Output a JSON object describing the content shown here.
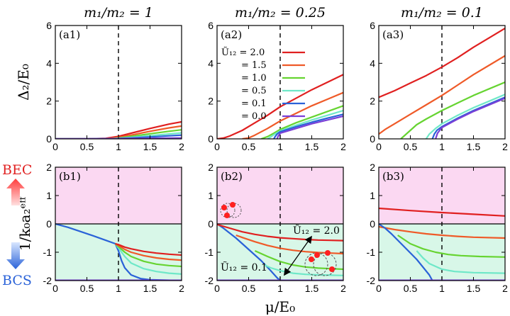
{
  "chart_data": {
    "type": "line",
    "xlabel": "μ/E₀",
    "ylabel_top": "Δ₂/E₀",
    "ylabel_bottom": "1/k₀a₂ᵉᶠᶠ",
    "bec_label": "BEC",
    "bcs_label": "BCS",
    "dashed_line_x": 1,
    "legend": {
      "title": "Ũ₁₂ =",
      "entries": [
        {
          "label": "Ũ₁₂ = 2.0",
          "u": 2.0,
          "color": "#e02020"
        },
        {
          "label": "= 1.5",
          "u": 1.5,
          "color": "#ef5a28"
        },
        {
          "label": "= 1.0",
          "u": 1.0,
          "color": "#66d431"
        },
        {
          "label": "= 0.5",
          "u": 0.5,
          "color": "#6fe8c8"
        },
        {
          "label": "= 0.1",
          "u": 0.1,
          "color": "#2a62d8"
        },
        {
          "label": "= 0.0",
          "u": 0.0,
          "color": "#7b3fd6"
        }
      ]
    },
    "panels": [
      {
        "id": "a1",
        "label": "(a1)",
        "row": "top",
        "col": 0,
        "title": "m₁/m₂ = 1",
        "xlim": [
          0,
          2
        ],
        "ylim": [
          0,
          6
        ],
        "xticks": [
          "0",
          "0.5",
          "1",
          "1.5",
          "2"
        ],
        "yticks": [
          "0",
          "2",
          "4",
          "6"
        ],
        "series": [
          {
            "u": 2.0,
            "x": [
              0,
              0.5,
              0.8,
              1.0,
              1.2,
              1.5,
              1.8,
              2.0
            ],
            "y": [
              0,
              0,
              0.03,
              0.13,
              0.3,
              0.55,
              0.78,
              0.9
            ]
          },
          {
            "u": 1.5,
            "x": [
              0,
              0.5,
              0.85,
              1.0,
              1.2,
              1.5,
              1.8,
              2.0
            ],
            "y": [
              0,
              0,
              0.02,
              0.08,
              0.2,
              0.4,
              0.58,
              0.68
            ]
          },
          {
            "u": 1.0,
            "x": [
              0,
              0.5,
              0.9,
              1.0,
              1.2,
              1.5,
              1.8,
              2.0
            ],
            "y": [
              0,
              0,
              0.01,
              0.05,
              0.13,
              0.27,
              0.4,
              0.48
            ]
          },
          {
            "u": 0.5,
            "x": [
              0,
              0.5,
              0.9,
              1.0,
              1.2,
              1.5,
              1.8,
              2.0
            ],
            "y": [
              0,
              0,
              0.01,
              0.03,
              0.08,
              0.17,
              0.26,
              0.32
            ]
          },
          {
            "u": 0.1,
            "x": [
              0,
              0.5,
              1.0,
              1.2,
              1.5,
              1.8,
              2.0
            ],
            "y": [
              0,
              0,
              0.02,
              0.05,
              0.1,
              0.16,
              0.2
            ]
          },
          {
            "u": 0.0,
            "x": [
              0,
              1.0,
              1.5,
              2.0
            ],
            "y": [
              0,
              0.01,
              0.03,
              0.05
            ]
          }
        ]
      },
      {
        "id": "a2",
        "label": "(a2)",
        "row": "top",
        "col": 1,
        "title": "m₁/m₂ = 0.25",
        "xlim": [
          0,
          2
        ],
        "ylim": [
          0,
          6
        ],
        "xticks": [
          "0",
          "0.5",
          "1",
          "1.5",
          "2"
        ],
        "yticks": [
          "0",
          "2",
          "4",
          "6"
        ],
        "series": [
          {
            "u": 2.0,
            "x": [
              0,
              0.1,
              0.2,
              0.4,
              0.6,
              0.8,
              1.0,
              1.25,
              1.5,
              1.75,
              2.0
            ],
            "y": [
              0,
              0.04,
              0.15,
              0.45,
              0.85,
              1.25,
              1.7,
              2.15,
              2.6,
              3.0,
              3.4
            ]
          },
          {
            "u": 1.5,
            "x": [
              0.4,
              0.5,
              0.6,
              0.8,
              1.0,
              1.25,
              1.5,
              1.75,
              2.0
            ],
            "y": [
              0,
              0.05,
              0.2,
              0.55,
              0.95,
              1.35,
              1.75,
              2.1,
              2.45
            ]
          },
          {
            "u": 1.0,
            "x": [
              0.7,
              0.8,
              0.9,
              1.0,
              1.25,
              1.5,
              1.75,
              2.0
            ],
            "y": [
              0,
              0.12,
              0.3,
              0.5,
              0.85,
              1.15,
              1.45,
              1.75
            ]
          },
          {
            "u": 0.5,
            "x": [
              0.8,
              0.85,
              0.9,
              1.0,
              1.25,
              1.5,
              1.75,
              2.0
            ],
            "y": [
              0,
              0.1,
              0.22,
              0.42,
              0.72,
              1.0,
              1.25,
              1.5
            ]
          },
          {
            "u": 0.1,
            "x": [
              0.9,
              0.92,
              0.95,
              1.0,
              1.25,
              1.5,
              1.75,
              2.0
            ],
            "y": [
              0,
              0.12,
              0.25,
              0.38,
              0.64,
              0.88,
              1.1,
              1.3
            ]
          },
          {
            "u": 0.0,
            "x": [
              0.95,
              0.97,
              1.0,
              1.25,
              1.5,
              1.75,
              2.0
            ],
            "y": [
              0,
              0.15,
              0.3,
              0.55,
              0.8,
              1.0,
              1.2
            ]
          }
        ]
      },
      {
        "id": "a3",
        "label": "(a3)",
        "row": "top",
        "col": 2,
        "title": "m₁/m₂ = 0.1",
        "xlim": [
          0,
          2
        ],
        "ylim": [
          0,
          6
        ],
        "xticks": [
          "0",
          "0.5",
          "1",
          "1.5",
          "2"
        ],
        "yticks": [
          "0",
          "2",
          "4",
          "6"
        ],
        "series": [
          {
            "u": 2.0,
            "x": [
              0,
              0.25,
              0.5,
              0.75,
              1.0,
              1.25,
              1.5,
              1.75,
              2.0
            ],
            "y": [
              2.2,
              2.55,
              2.95,
              3.35,
              3.8,
              4.3,
              4.85,
              5.35,
              5.85
            ]
          },
          {
            "u": 1.5,
            "x": [
              0,
              0.1,
              0.25,
              0.5,
              0.75,
              1.0,
              1.25,
              1.5,
              1.75,
              2.0
            ],
            "y": [
              0.25,
              0.5,
              0.8,
              1.3,
              1.8,
              2.3,
              2.85,
              3.4,
              3.9,
              4.4
            ]
          },
          {
            "u": 1.0,
            "x": [
              0.35,
              0.4,
              0.5,
              0.6,
              0.75,
              1.0,
              1.25,
              1.5,
              1.75,
              2.0
            ],
            "y": [
              0,
              0.15,
              0.45,
              0.75,
              1.05,
              1.5,
              1.9,
              2.3,
              2.65,
              3.0
            ]
          },
          {
            "u": 0.5,
            "x": [
              0.75,
              0.8,
              0.9,
              1.0,
              1.25,
              1.5,
              1.75,
              2.0
            ],
            "y": [
              0,
              0.25,
              0.55,
              0.8,
              1.25,
              1.65,
              2.0,
              2.35
            ]
          },
          {
            "u": 0.1,
            "x": [
              0.85,
              0.88,
              0.92,
              1.0,
              1.25,
              1.5,
              1.75,
              2.0
            ],
            "y": [
              0,
              0.25,
              0.45,
              0.65,
              1.1,
              1.5,
              1.85,
              2.2
            ]
          },
          {
            "u": 0.0,
            "x": [
              0.9,
              0.93,
              1.0,
              1.25,
              1.5,
              1.75,
              2.0
            ],
            "y": [
              0,
              0.3,
              0.6,
              1.05,
              1.45,
              1.8,
              2.15
            ]
          }
        ]
      },
      {
        "id": "b1",
        "label": "(b1)",
        "row": "bottom",
        "col": 0,
        "xlim": [
          0,
          2
        ],
        "ylim": [
          -2,
          2
        ],
        "xticks": [
          "0",
          "0.5",
          "1",
          "1.5",
          "2"
        ],
        "yticks": [
          "-2",
          "-1",
          "0",
          "1",
          "2"
        ],
        "series": [
          {
            "u": 0.1,
            "x": [
              0,
              0.2,
              0.4,
              0.6,
              0.8,
              0.95,
              1.0,
              1.05,
              1.1,
              1.2,
              1.35,
              1.5,
              2.0
            ],
            "y": [
              0,
              -0.12,
              -0.27,
              -0.42,
              -0.58,
              -0.7,
              -0.95,
              -1.3,
              -1.55,
              -1.8,
              -1.93,
              -1.97,
              -2.0
            ]
          },
          {
            "u": 0.5,
            "x": [
              0.95,
              1.0,
              1.1,
              1.2,
              1.4,
              1.6,
              1.8,
              2.0
            ],
            "y": [
              -0.7,
              -0.85,
              -1.15,
              -1.38,
              -1.58,
              -1.68,
              -1.74,
              -1.77
            ]
          },
          {
            "u": 1.0,
            "x": [
              0.95,
              1.0,
              1.1,
              1.2,
              1.4,
              1.6,
              1.8,
              2.0
            ],
            "y": [
              -0.7,
              -0.8,
              -1.0,
              -1.15,
              -1.32,
              -1.42,
              -1.47,
              -1.5
            ]
          },
          {
            "u": 1.5,
            "x": [
              0.95,
              1.0,
              1.1,
              1.2,
              1.4,
              1.6,
              1.8,
              2.0
            ],
            "y": [
              -0.7,
              -0.76,
              -0.9,
              -1.0,
              -1.12,
              -1.2,
              -1.25,
              -1.28
            ]
          },
          {
            "u": 2.0,
            "x": [
              0.95,
              1.0,
              1.1,
              1.2,
              1.4,
              1.6,
              1.8,
              2.0
            ],
            "y": [
              -0.7,
              -0.73,
              -0.82,
              -0.88,
              -0.97,
              -1.03,
              -1.07,
              -1.1
            ]
          },
          {
            "u": 0.0,
            "x": [
              0,
              2.0
            ],
            "y": [
              -1.99,
              -1.99
            ]
          }
        ]
      },
      {
        "id": "b2",
        "label": "(b2)",
        "row": "bottom",
        "col": 1,
        "xlim": [
          0,
          2
        ],
        "ylim": [
          -2,
          2
        ],
        "xticks": [
          "0",
          "0.5",
          "1",
          "1.5",
          "2"
        ],
        "yticks": [
          "-2",
          "-1",
          "0",
          "1",
          "2"
        ],
        "annotations": [
          {
            "text": "Ũ₁₂ = 2.0",
            "x": 1.25,
            "y": -0.3
          },
          {
            "text": "Ũ₁₂ = 0.1",
            "x": 0.05,
            "y": -1.8
          }
        ],
        "series": [
          {
            "u": 0.1,
            "x": [
              0,
              0.1,
              0.3,
              0.5,
              0.7,
              0.85,
              0.95,
              1.0
            ],
            "y": [
              0,
              -0.15,
              -0.5,
              -0.9,
              -1.3,
              -1.65,
              -1.9,
              -2.0
            ]
          },
          {
            "u": 2.0,
            "x": [
              0,
              0.2,
              0.4,
              0.6,
              0.8,
              1.0,
              1.2,
              1.4,
              1.6,
              1.8,
              2.0
            ],
            "y": [
              -0.02,
              -0.15,
              -0.28,
              -0.37,
              -0.44,
              -0.49,
              -0.52,
              -0.55,
              -0.57,
              -0.58,
              -0.59
            ]
          },
          {
            "u": 1.5,
            "x": [
              0.3,
              0.4,
              0.6,
              0.8,
              1.0,
              1.2,
              1.4,
              1.6,
              1.8,
              2.0
            ],
            "y": [
              -0.4,
              -0.48,
              -0.63,
              -0.76,
              -0.86,
              -0.93,
              -0.98,
              -1.01,
              -1.03,
              -1.05
            ]
          },
          {
            "u": 1.0,
            "x": [
              0.6,
              0.7,
              0.8,
              1.0,
              1.2,
              1.4,
              1.6,
              1.8,
              2.0
            ],
            "y": [
              -0.95,
              -1.05,
              -1.15,
              -1.33,
              -1.45,
              -1.52,
              -1.56,
              -1.58,
              -1.6
            ]
          },
          {
            "u": 0.5,
            "x": [
              0.75,
              0.85,
              1.0,
              1.2,
              1.4,
              1.6,
              1.8,
              2.0
            ],
            "y": [
              -1.45,
              -1.55,
              -1.65,
              -1.74,
              -1.78,
              -1.8,
              -1.81,
              -1.82
            ]
          },
          {
            "u": 0.0,
            "x": [
              0,
              2.0
            ],
            "y": [
              -1.99,
              -1.99
            ]
          }
        ]
      },
      {
        "id": "b3",
        "label": "(b3)",
        "row": "bottom",
        "col": 2,
        "xlim": [
          0,
          2
        ],
        "ylim": [
          -2,
          2
        ],
        "xticks": [
          "0",
          "0.5",
          "1",
          "1.5",
          "2"
        ],
        "yticks": [
          "-2",
          "-1",
          "0",
          "1",
          "2"
        ],
        "series": [
          {
            "u": 2.0,
            "x": [
              0,
              0.5,
              1.0,
              1.5,
              2.0
            ],
            "y": [
              0.55,
              0.47,
              0.4,
              0.34,
              0.28
            ]
          },
          {
            "u": 1.5,
            "x": [
              0,
              0.25,
              0.5,
              0.75,
              1.0,
              1.25,
              1.5,
              2.0
            ],
            "y": [
              -0.1,
              -0.2,
              -0.28,
              -0.35,
              -0.4,
              -0.44,
              -0.47,
              -0.5
            ]
          },
          {
            "u": 1.0,
            "x": [
              0.3,
              0.4,
              0.5,
              0.7,
              0.9,
              1.1,
              1.3,
              1.6,
              2.0
            ],
            "y": [
              -0.4,
              -0.55,
              -0.7,
              -0.88,
              -1.0,
              -1.08,
              -1.12,
              -1.15,
              -1.17
            ]
          },
          {
            "u": 0.5,
            "x": [
              0.6,
              0.7,
              0.8,
              1.0,
              1.2,
              1.5,
              2.0
            ],
            "y": [
              -0.95,
              -1.2,
              -1.4,
              -1.6,
              -1.68,
              -1.72,
              -1.74
            ]
          },
          {
            "u": 0.1,
            "x": [
              0,
              0.1,
              0.2,
              0.4,
              0.6,
              0.8,
              0.85
            ],
            "y": [
              0,
              -0.15,
              -0.35,
              -0.8,
              -1.25,
              -1.8,
              -2.0
            ]
          },
          {
            "u": 0.0,
            "x": [
              0,
              2.0
            ],
            "y": [
              -1.99,
              -1.99
            ]
          }
        ]
      }
    ]
  }
}
